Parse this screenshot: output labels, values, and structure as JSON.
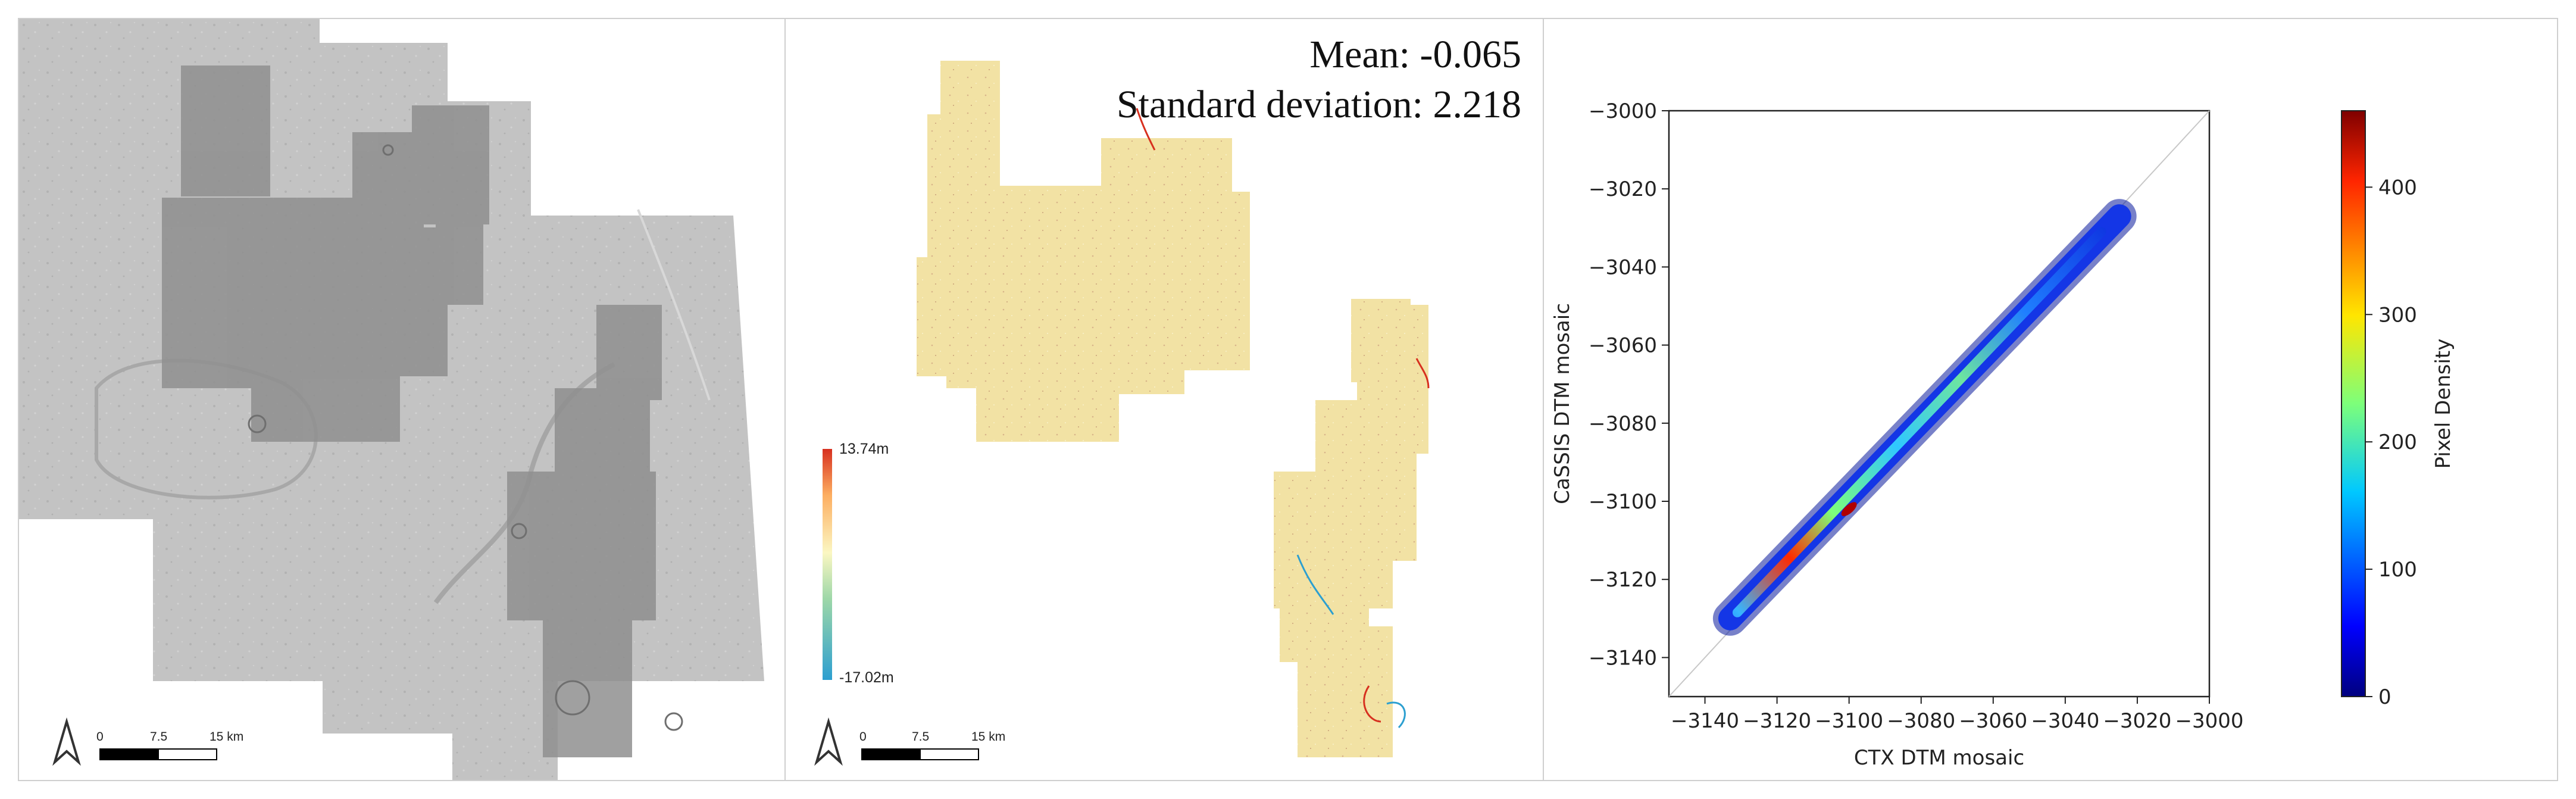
{
  "colors": {
    "hillshade_base": "#bdbdbd",
    "hillshade_overlay": "#8f8f8f",
    "diff_fill": "#f2e4a8",
    "diff_high": "#d7301f",
    "diff_low": "#2c9fd0",
    "panel_border": "#cfcfcf"
  },
  "hillshade_panel": {
    "scale_bar": {
      "ticks": [
        "0",
        "7.5",
        "15 km"
      ]
    },
    "north_arrow_icon": "north-arrow-icon"
  },
  "difference_panel": {
    "stats": {
      "mean": "Mean: -0.065",
      "std": "Standard deviation: 2.218"
    },
    "legend": {
      "max": "13.74m",
      "min": "-17.02m"
    },
    "scale_bar": {
      "ticks": [
        "0",
        "7.5",
        "15 km"
      ]
    },
    "north_arrow_icon": "north-arrow-icon"
  },
  "chart_data": {
    "type": "heatmap",
    "title": "",
    "xlabel": "CTX DTM mosaic",
    "ylabel": "CaSSIS DTM mosaic",
    "xlim": [
      -3150,
      -3000
    ],
    "ylim": [
      -3150,
      -3000
    ],
    "xticks": [
      "−3140",
      "−3120",
      "−3100",
      "−3080",
      "−3060",
      "−3040",
      "−3020",
      "−3000"
    ],
    "yticks": [
      "−3000",
      "−3020",
      "−3040",
      "−3060",
      "−3080",
      "−3100",
      "−3120",
      "−3140"
    ],
    "xtick_values": [
      -3140,
      -3120,
      -3100,
      -3080,
      -3060,
      -3040,
      -3020,
      -3000
    ],
    "ytick_values": [
      -3000,
      -3020,
      -3040,
      -3060,
      -3080,
      -3100,
      -3120,
      -3140
    ],
    "reference_line": "1:1",
    "colorbar": {
      "label": "Pixel Density",
      "ticks": [
        "0",
        "100",
        "200",
        "300",
        "400"
      ],
      "tick_values": [
        0,
        100,
        200,
        300,
        400
      ],
      "range": [
        0,
        460
      ],
      "colormap": "jet"
    },
    "density_band": {
      "x_start": -3133,
      "x_end": -3025,
      "y_start": -3130,
      "y_end": -3027,
      "peak_x": -3100,
      "peak_y": -3102,
      "peak_density": 460
    },
    "grid": false
  }
}
